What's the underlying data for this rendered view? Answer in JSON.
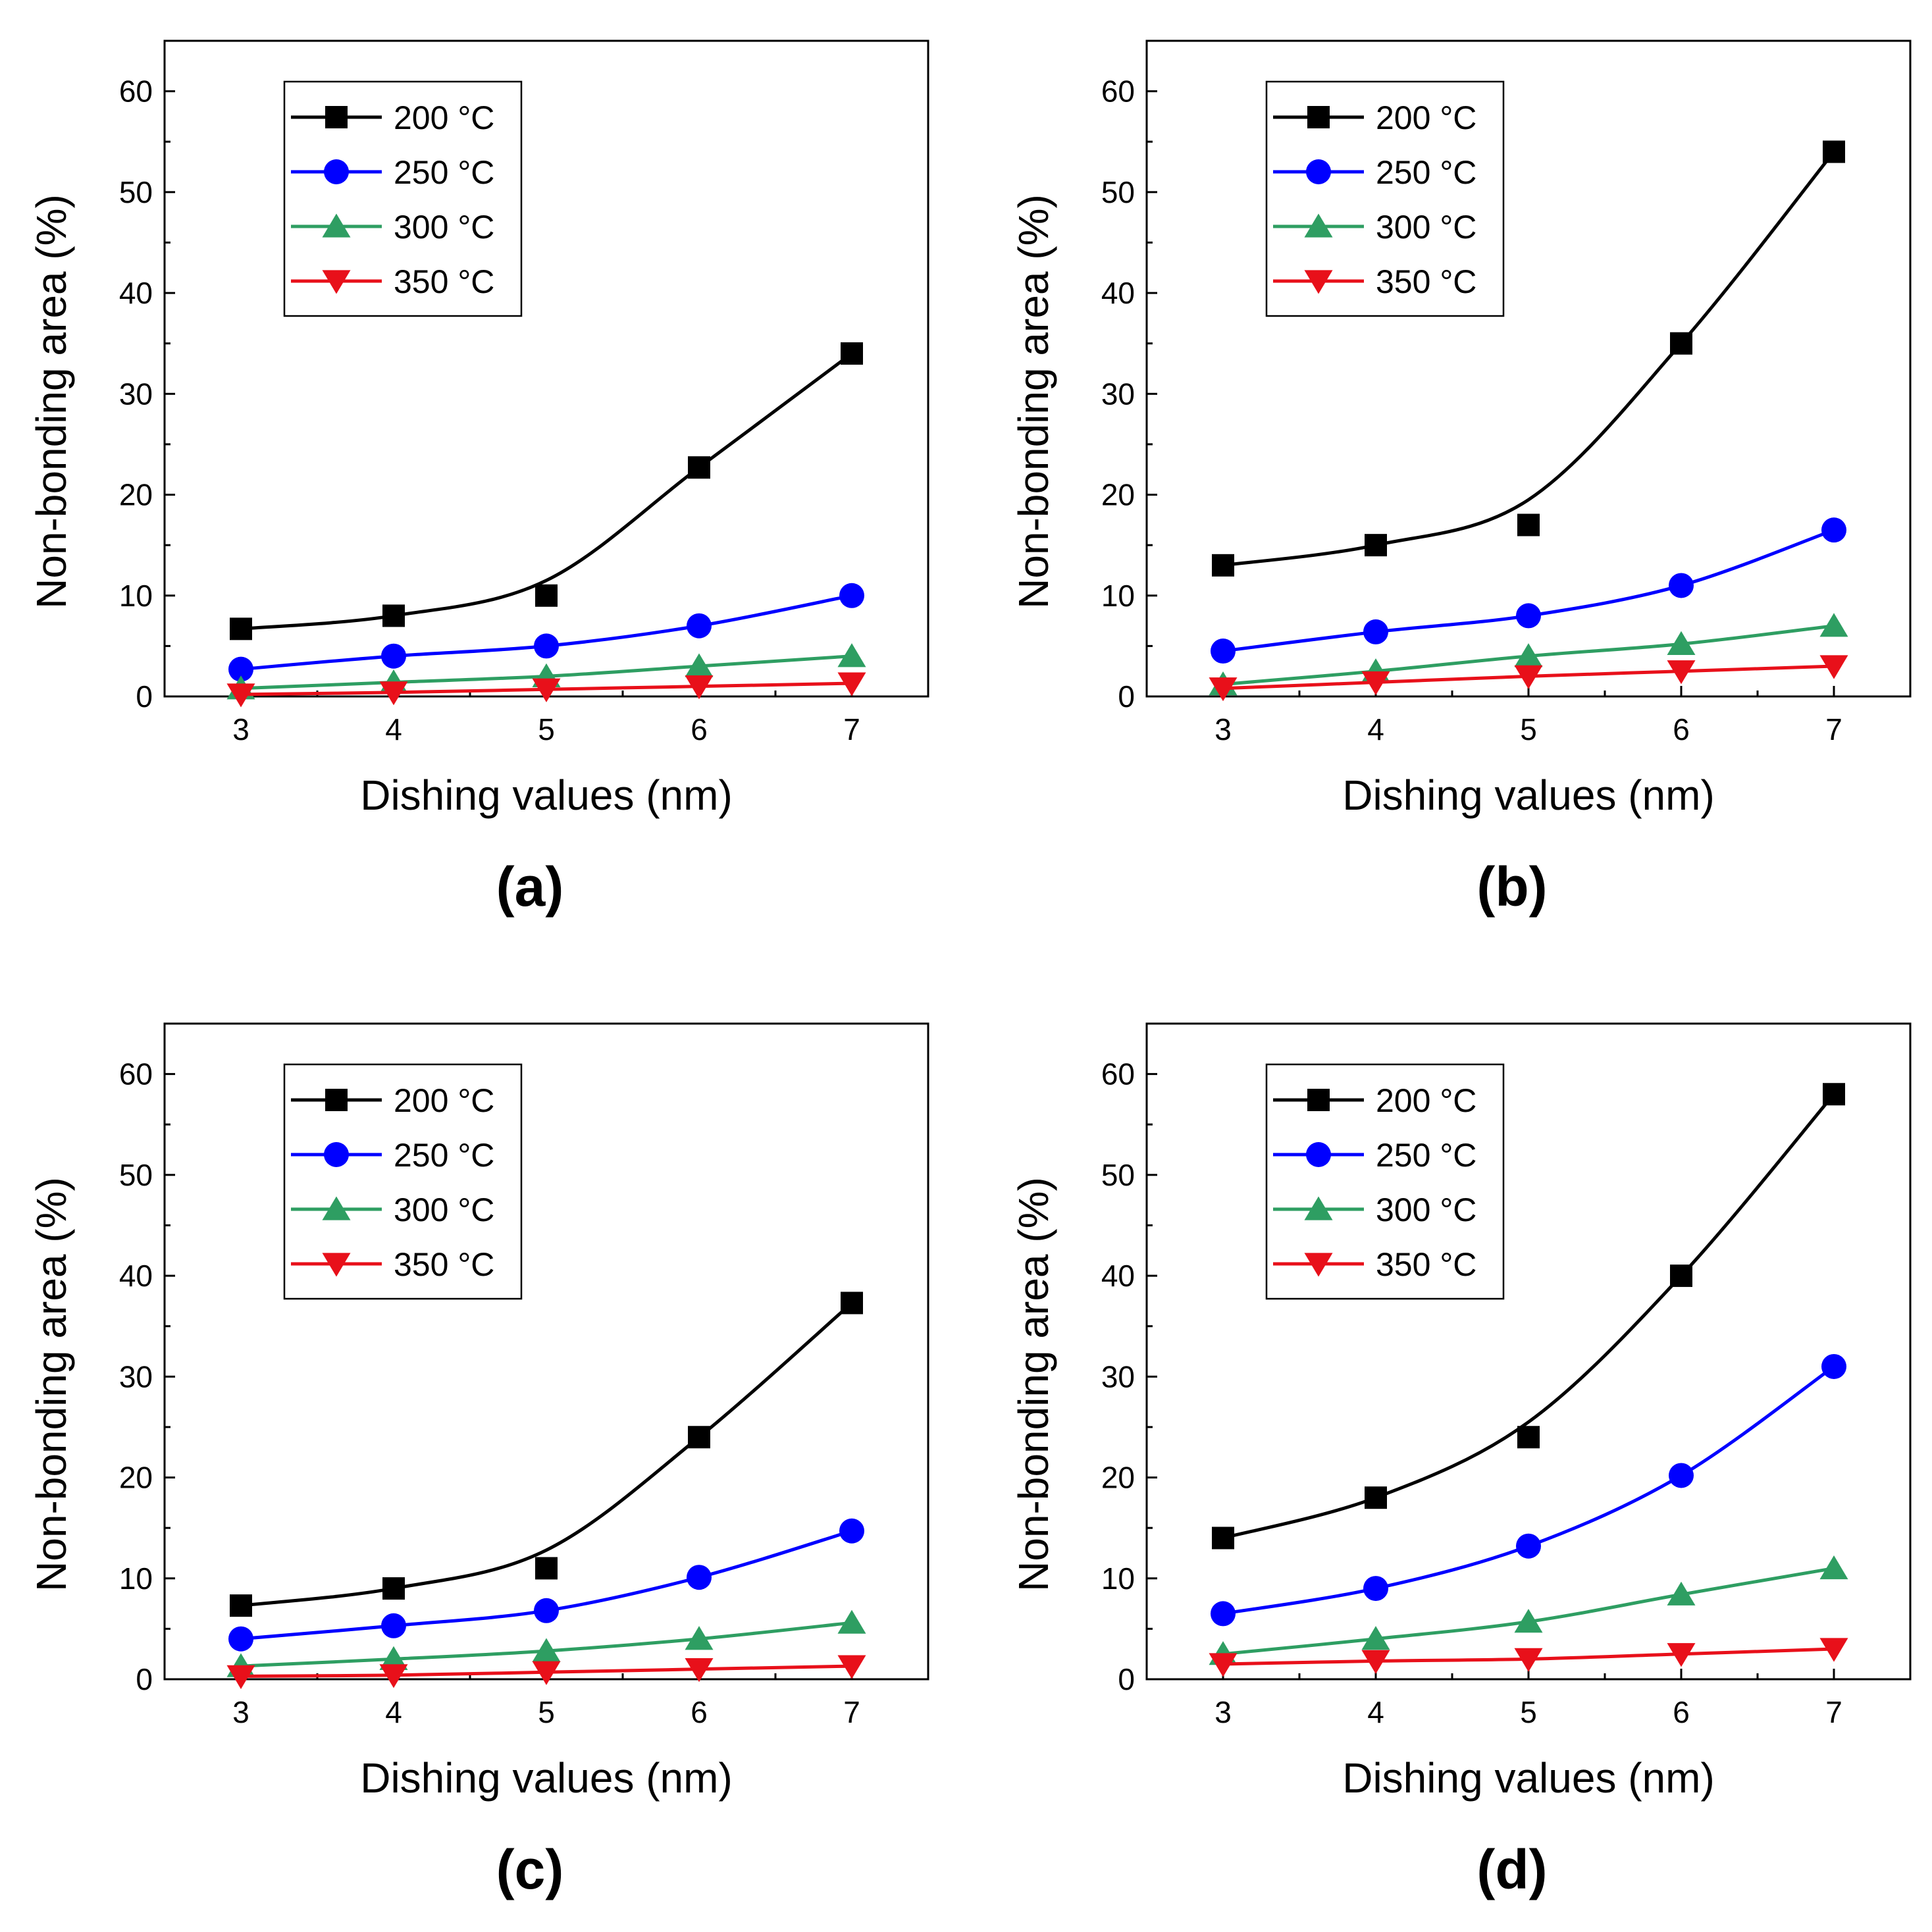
{
  "chart_data": [
    {
      "type": "line",
      "label": "(a)",
      "xlabel": "Dishing values (nm)",
      "ylabel": "Non-bonding area (%)",
      "x": [
        3,
        4,
        5,
        6,
        7
      ],
      "xlim": [
        2.5,
        7.5
      ],
      "ylim": [
        0,
        65
      ],
      "yticks": [
        0,
        10,
        20,
        30,
        40,
        50,
        60
      ],
      "xticks": [
        3,
        4,
        5,
        6,
        7
      ],
      "legend_position": "top-left",
      "series": [
        {
          "name": "200 °C",
          "color": "#000000",
          "marker": "square",
          "values": [
            6.7,
            8,
            10,
            22.7,
            34
          ],
          "curve": [
            6.7,
            8,
            11.5,
            22.7,
            34
          ]
        },
        {
          "name": "250 °C",
          "color": "#0000ff",
          "marker": "circle",
          "values": [
            2.7,
            4,
            5,
            7,
            10
          ],
          "curve": [
            2.7,
            4,
            5,
            7,
            10
          ]
        },
        {
          "name": "300 °C",
          "color": "#2e9e62",
          "marker": "triangle-up",
          "values": [
            0.8,
            1.4,
            2,
            3,
            4
          ],
          "curve": [
            0.8,
            1.4,
            2,
            3,
            4
          ]
        },
        {
          "name": "350 °C",
          "color": "#e8101a",
          "marker": "triangle-down",
          "values": [
            0.2,
            0.4,
            0.7,
            1,
            1.3
          ],
          "curve": [
            0.2,
            0.4,
            0.7,
            1,
            1.3
          ]
        }
      ]
    },
    {
      "type": "line",
      "label": "(b)",
      "xlabel": "Dishing values (nm)",
      "ylabel": "Non-bonding area (%)",
      "x": [
        3,
        4,
        5,
        6,
        7
      ],
      "xlim": [
        2.5,
        7.5
      ],
      "ylim": [
        0,
        65
      ],
      "yticks": [
        0,
        10,
        20,
        30,
        40,
        50,
        60
      ],
      "xticks": [
        3,
        4,
        5,
        6,
        7
      ],
      "legend_position": "top-left",
      "series": [
        {
          "name": "200 °C",
          "color": "#000000",
          "marker": "square",
          "values": [
            13,
            15,
            17,
            35,
            54
          ],
          "curve": [
            13,
            15,
            19.5,
            35,
            54
          ]
        },
        {
          "name": "250 °C",
          "color": "#0000ff",
          "marker": "circle",
          "values": [
            4.5,
            6.4,
            8,
            11,
            16.5
          ],
          "curve": [
            4.5,
            6.4,
            8,
            11,
            16.5
          ]
        },
        {
          "name": "300 °C",
          "color": "#2e9e62",
          "marker": "triangle-up",
          "values": [
            1.2,
            2.5,
            4,
            5.2,
            7
          ],
          "curve": [
            1.2,
            2.5,
            4,
            5.2,
            7
          ]
        },
        {
          "name": "350 °C",
          "color": "#e8101a",
          "marker": "triangle-down",
          "values": [
            0.8,
            1.4,
            2,
            2.5,
            3
          ],
          "curve": [
            0.8,
            1.4,
            2,
            2.5,
            3
          ]
        }
      ]
    },
    {
      "type": "line",
      "label": "(c)",
      "xlabel": "Dishing values (nm)",
      "ylabel": "Non-bonding area (%)",
      "x": [
        3,
        4,
        5,
        6,
        7
      ],
      "xlim": [
        2.5,
        7.5
      ],
      "ylim": [
        0,
        65
      ],
      "yticks": [
        0,
        10,
        20,
        30,
        40,
        50,
        60
      ],
      "xticks": [
        3,
        4,
        5,
        6,
        7
      ],
      "legend_position": "top-left",
      "series": [
        {
          "name": "200 °C",
          "color": "#000000",
          "marker": "square",
          "values": [
            7.3,
            9,
            11,
            24,
            37.3
          ],
          "curve": [
            7.3,
            9,
            12.8,
            24,
            37.3
          ]
        },
        {
          "name": "250 °C",
          "color": "#0000ff",
          "marker": "circle",
          "values": [
            4,
            5.3,
            6.8,
            10.1,
            14.7
          ],
          "curve": [
            4,
            5.3,
            6.8,
            10.1,
            14.7
          ]
        },
        {
          "name": "300 °C",
          "color": "#2e9e62",
          "marker": "triangle-up",
          "values": [
            1.3,
            2,
            2.8,
            4,
            5.6
          ],
          "curve": [
            1.3,
            2,
            2.8,
            4,
            5.6
          ]
        },
        {
          "name": "350 °C",
          "color": "#e8101a",
          "marker": "triangle-down",
          "values": [
            0.3,
            0.4,
            0.7,
            1,
            1.3
          ],
          "curve": [
            0.3,
            0.4,
            0.7,
            1,
            1.3
          ]
        }
      ]
    },
    {
      "type": "line",
      "label": "(d)",
      "xlabel": "Dishing values (nm)",
      "ylabel": "Non-bonding area (%)",
      "x": [
        3,
        4,
        5,
        6,
        7
      ],
      "xlim": [
        2.5,
        7.5
      ],
      "ylim": [
        0,
        65
      ],
      "yticks": [
        0,
        10,
        20,
        30,
        40,
        50,
        60
      ],
      "xticks": [
        3,
        4,
        5,
        6,
        7
      ],
      "legend_position": "top-left",
      "series": [
        {
          "name": "200 °C",
          "color": "#000000",
          "marker": "square",
          "values": [
            14,
            18,
            24,
            40,
            58
          ],
          "curve": [
            14,
            18,
            25.5,
            40,
            58
          ]
        },
        {
          "name": "250 °C",
          "color": "#0000ff",
          "marker": "circle",
          "values": [
            6.5,
            9,
            13.2,
            20.2,
            31
          ],
          "curve": [
            6.5,
            9,
            13.2,
            20.2,
            31
          ]
        },
        {
          "name": "300 °C",
          "color": "#2e9e62",
          "marker": "triangle-up",
          "values": [
            2.5,
            4,
            5.7,
            8.4,
            11
          ],
          "curve": [
            2.5,
            4,
            5.7,
            8.4,
            11
          ]
        },
        {
          "name": "350 °C",
          "color": "#e8101a",
          "marker": "triangle-down",
          "values": [
            1.5,
            1.8,
            2,
            2.5,
            3
          ],
          "curve": [
            1.5,
            1.8,
            2,
            2.5,
            3
          ]
        }
      ]
    }
  ]
}
